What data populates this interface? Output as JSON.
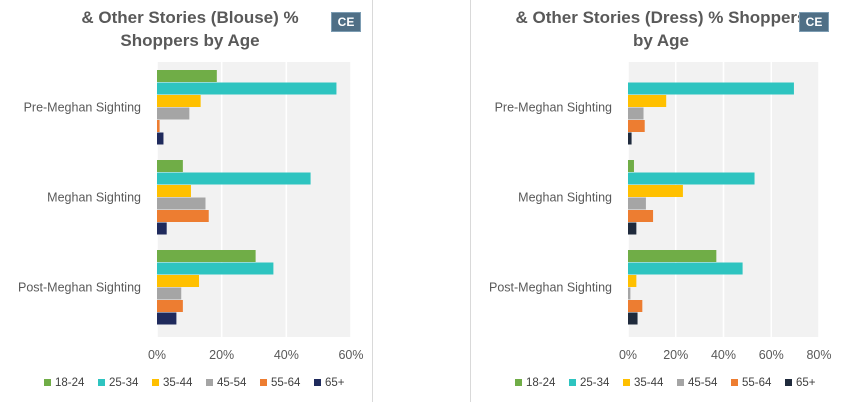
{
  "chart_data": [
    {
      "type": "bar",
      "orientation": "horizontal",
      "title": "& Other Stories (Blouse) % Shoppers by Age",
      "badge": "CE",
      "categories": [
        "Pre-Meghan Sighting",
        "Meghan Sighting",
        "Post-Meghan Sighting"
      ],
      "xlim": [
        0,
        60
      ],
      "xticks": [
        "0%",
        "20%",
        "40%",
        "60%"
      ],
      "xtick_values": [
        0,
        20,
        40,
        60
      ],
      "grid": true,
      "legend_position": "bottom",
      "series": [
        {
          "name": "18-24",
          "color": "#70ad47",
          "values": [
            18.5,
            8,
            30.5
          ]
        },
        {
          "name": "25-34",
          "color": "#2ec4c0",
          "values": [
            55.5,
            47.5,
            36
          ]
        },
        {
          "name": "35-44",
          "color": "#ffc000",
          "values": [
            13.5,
            10.5,
            13
          ]
        },
        {
          "name": "45-54",
          "color": "#a5a5a5",
          "values": [
            10,
            15,
            7.5
          ]
        },
        {
          "name": "55-64",
          "color": "#ed7d31",
          "values": [
            0.8,
            16,
            8
          ]
        },
        {
          "name": "65+",
          "color": "#1f2a5c",
          "values": [
            2,
            3,
            6
          ]
        }
      ]
    },
    {
      "type": "bar",
      "orientation": "horizontal",
      "title": "& Other Stories (Dress) % Shoppers by Age",
      "badge": "CE",
      "categories": [
        "Pre-Meghan Sighting",
        "Meghan Sighting",
        "Post-Meghan Sighting"
      ],
      "xlim": [
        0,
        80
      ],
      "xticks": [
        "0%",
        "20%",
        "40%",
        "60%",
        "80%"
      ],
      "xtick_values": [
        0,
        20,
        40,
        60,
        80
      ],
      "grid": true,
      "legend_position": "bottom",
      "series": [
        {
          "name": "18-24",
          "color": "#70ad47",
          "values": [
            0,
            2.5,
            37
          ]
        },
        {
          "name": "25-34",
          "color": "#2ec4c0",
          "values": [
            69.5,
            53,
            48
          ]
        },
        {
          "name": "35-44",
          "color": "#ffc000",
          "values": [
            16,
            23,
            3.5
          ]
        },
        {
          "name": "45-54",
          "color": "#a5a5a5",
          "values": [
            6.5,
            7.5,
            1
          ]
        },
        {
          "name": "55-64",
          "color": "#ed7d31",
          "values": [
            7,
            10.5,
            6
          ]
        },
        {
          "name": "65+",
          "color": "#1f2a3c",
          "values": [
            1.5,
            3.5,
            4
          ]
        }
      ]
    }
  ]
}
